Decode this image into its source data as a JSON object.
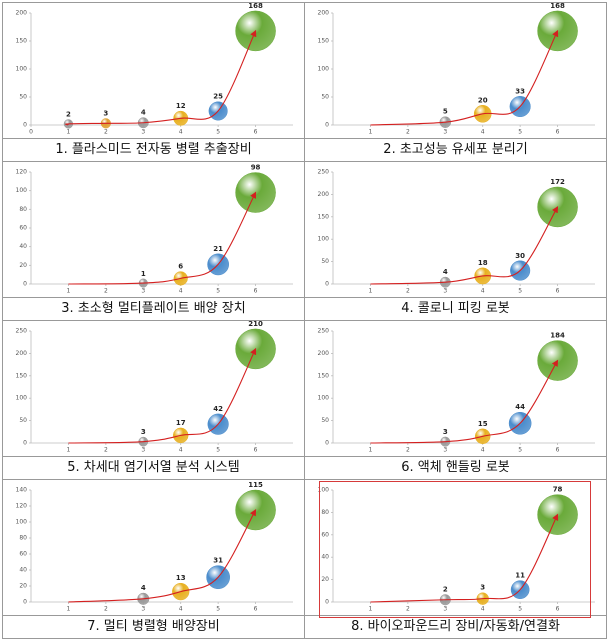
{
  "chart_data": [
    {
      "type": "bubble",
      "title": "1. 플라스미드 전자동 병렬 추출장비",
      "x": [
        1,
        2,
        3,
        4,
        5,
        6
      ],
      "values": [
        2,
        3,
        4,
        12,
        25,
        168
      ],
      "value_labels": [
        "2",
        "3",
        "4",
        "12",
        "25",
        "168"
      ],
      "point_colors": [
        "#999999",
        "#e0a030",
        "#999999",
        "#e8b020",
        "#4a8ccc",
        "#6aaa3a"
      ],
      "line_color": "#d42020",
      "xlim": [
        0,
        7
      ],
      "xticks": [
        0,
        1,
        2,
        3,
        4,
        5,
        6
      ],
      "ylim": [
        0,
        200
      ],
      "yticks": [
        0,
        50,
        100,
        150,
        200
      ]
    },
    {
      "type": "bubble",
      "title": "2. 초고성능 유세포 분리기",
      "x": [
        3,
        4,
        5,
        6
      ],
      "values": [
        5,
        20,
        33,
        168
      ],
      "value_labels": [
        "5",
        "20",
        "33",
        "168"
      ],
      "point_colors": [
        "#999999",
        "#e8b020",
        "#4a8ccc",
        "#6aaa3a"
      ],
      "line_color": "#d42020",
      "xlim": [
        0,
        7
      ],
      "xticks": [
        1,
        2,
        3,
        4,
        5,
        6
      ],
      "ylim": [
        0,
        200
      ],
      "yticks": [
        0,
        50,
        100,
        150,
        200
      ]
    },
    {
      "type": "bubble",
      "title": "3. 초소형 멀티플레이트 배양 장치",
      "x": [
        3,
        4,
        5,
        6
      ],
      "values": [
        1,
        6,
        21,
        98
      ],
      "value_labels": [
        "1",
        "6",
        "21",
        "98"
      ],
      "point_colors": [
        "#999999",
        "#e8b020",
        "#4a8ccc",
        "#6aaa3a"
      ],
      "line_color": "#d42020",
      "xlim": [
        0,
        7
      ],
      "xticks": [
        1,
        2,
        3,
        4,
        5,
        6
      ],
      "ylim": [
        0,
        120
      ],
      "yticks": [
        0,
        20,
        40,
        60,
        80,
        100,
        120
      ]
    },
    {
      "type": "bubble",
      "title": "4. 콜로니 피킹 로봇",
      "x": [
        3,
        4,
        5,
        6
      ],
      "values": [
        4,
        18,
        30,
        172
      ],
      "value_labels": [
        "4",
        "18",
        "30",
        "172"
      ],
      "point_colors": [
        "#999999",
        "#e8b020",
        "#4a8ccc",
        "#6aaa3a"
      ],
      "line_color": "#d42020",
      "xlim": [
        0,
        7
      ],
      "xticks": [
        1,
        2,
        3,
        4,
        5,
        6
      ],
      "ylim": [
        0,
        250
      ],
      "yticks": [
        0,
        50,
        100,
        150,
        200,
        250
      ]
    },
    {
      "type": "bubble",
      "title": "5. 차세대 염기서열 분석 시스템",
      "x": [
        3,
        4,
        5,
        6
      ],
      "values": [
        3,
        17,
        42,
        210
      ],
      "value_labels": [
        "3",
        "17",
        "42",
        "210"
      ],
      "point_colors": [
        "#999999",
        "#e8b020",
        "#4a8ccc",
        "#6aaa3a"
      ],
      "line_color": "#d42020",
      "xlim": [
        0,
        7
      ],
      "xticks": [
        1,
        2,
        3,
        4,
        5,
        6
      ],
      "ylim": [
        0,
        250
      ],
      "yticks": [
        0,
        50,
        100,
        150,
        200,
        250
      ]
    },
    {
      "type": "bubble",
      "title": "6. 액체 핸들링 로봇",
      "x": [
        3,
        4,
        5,
        6
      ],
      "values": [
        3,
        15,
        44,
        184
      ],
      "value_labels": [
        "3",
        "15",
        "44",
        "184"
      ],
      "point_colors": [
        "#999999",
        "#e8b020",
        "#4a8ccc",
        "#6aaa3a"
      ],
      "line_color": "#d42020",
      "xlim": [
        0,
        7
      ],
      "xticks": [
        1,
        2,
        3,
        4,
        5,
        6
      ],
      "ylim": [
        0,
        250
      ],
      "yticks": [
        0,
        50,
        100,
        150,
        200,
        250
      ]
    },
    {
      "type": "bubble",
      "title": "7. 멀티 병렬형 배양장비",
      "x": [
        3,
        4,
        5,
        6
      ],
      "values": [
        4,
        13,
        31,
        115
      ],
      "value_labels": [
        "4",
        "13",
        "31",
        "115"
      ],
      "point_colors": [
        "#999999",
        "#e8b020",
        "#4a8ccc",
        "#6aaa3a"
      ],
      "line_color": "#d42020",
      "xlim": [
        0,
        7
      ],
      "xticks": [
        1,
        2,
        3,
        4,
        5,
        6
      ],
      "ylim": [
        0,
        140
      ],
      "yticks": [
        0,
        20,
        40,
        60,
        80,
        100,
        120,
        140
      ]
    },
    {
      "type": "bubble",
      "title": "8. 바이오파운드리 장비/자동화/연결화",
      "x": [
        3,
        4,
        5,
        6
      ],
      "values": [
        2,
        3,
        11,
        78
      ],
      "value_labels": [
        "2",
        "3",
        "11",
        "78"
      ],
      "point_colors": [
        "#999999",
        "#e8b020",
        "#4a8ccc",
        "#6aaa3a"
      ],
      "line_color": "#d42020",
      "xlim": [
        0,
        7
      ],
      "xticks": [
        1,
        2,
        3,
        4,
        5,
        6
      ],
      "ylim": [
        0,
        100
      ],
      "yticks": [
        0,
        20,
        40,
        60,
        80,
        100
      ],
      "highlight": true
    }
  ]
}
